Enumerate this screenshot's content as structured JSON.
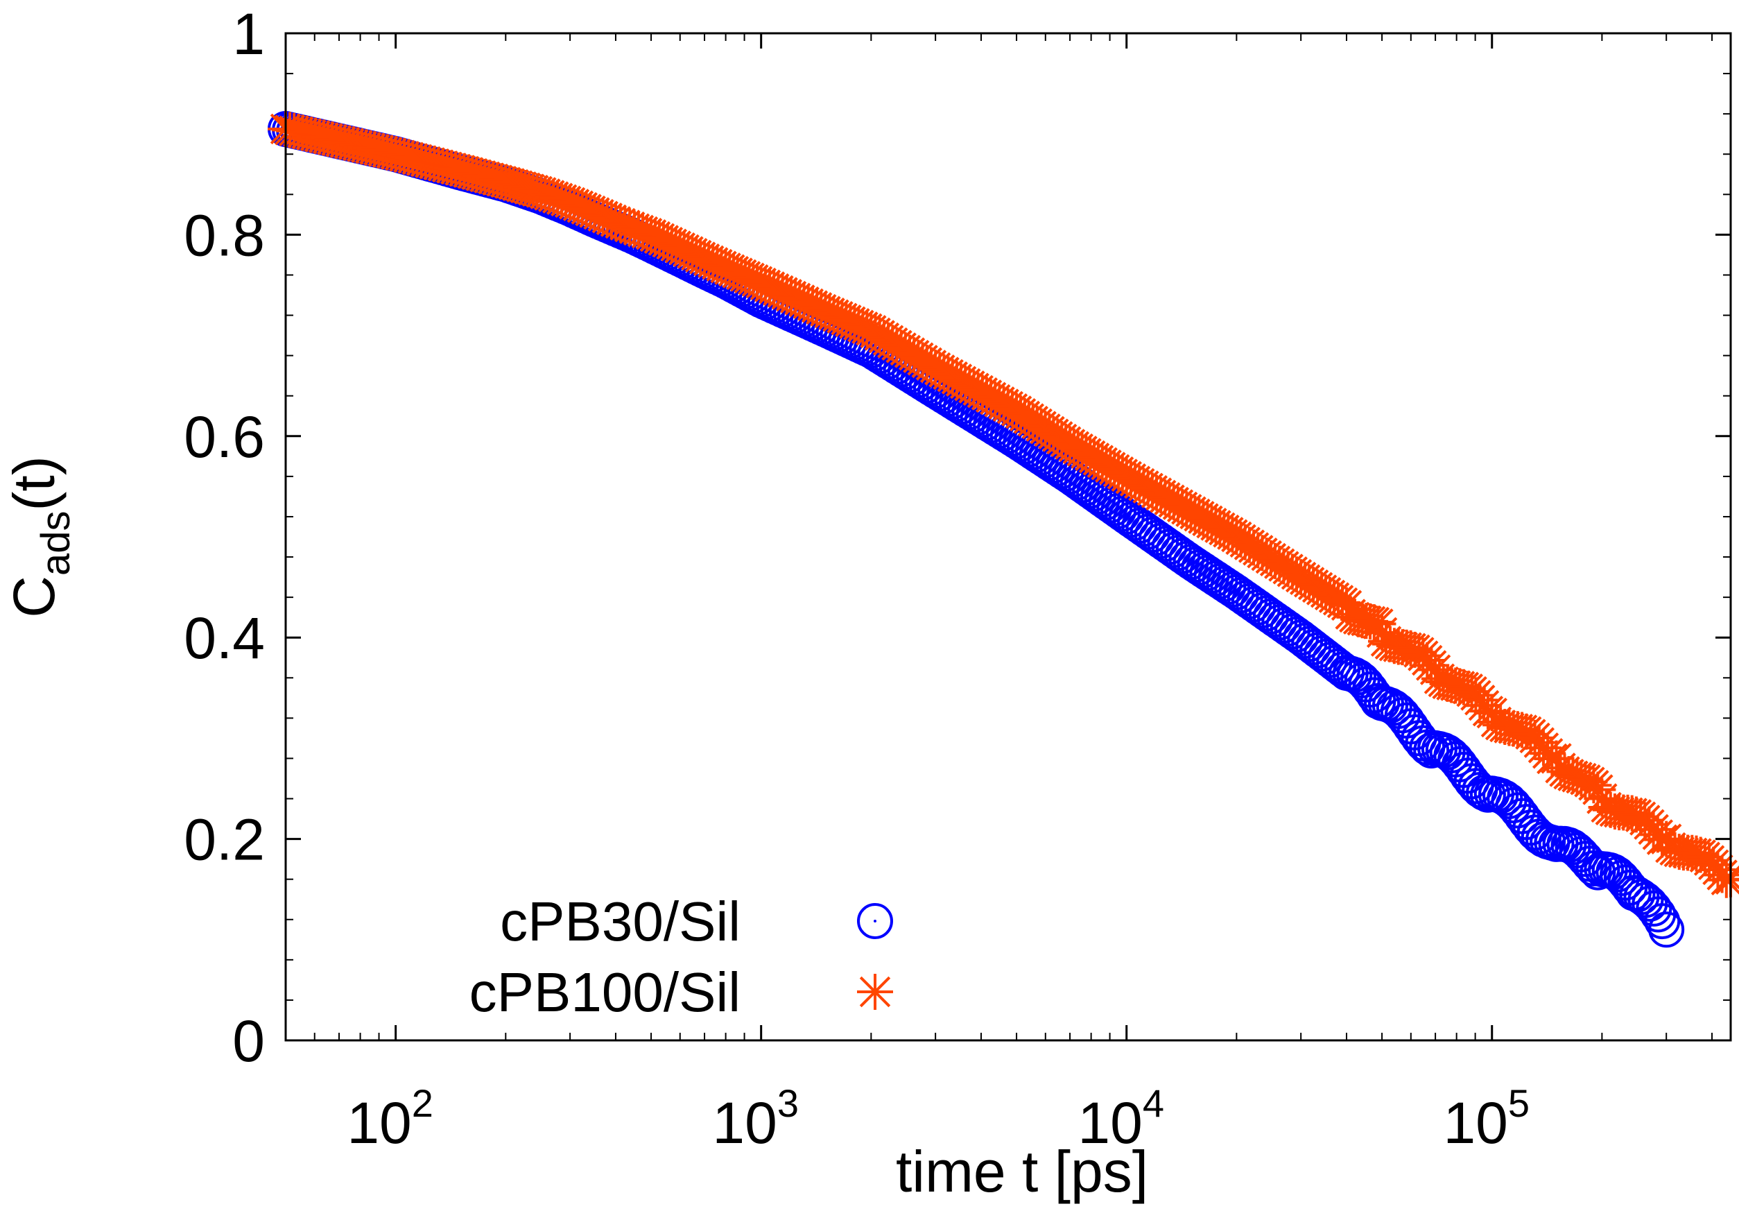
{
  "chart_data": {
    "type": "scatter",
    "title": "",
    "xlabel": "time t [ps]",
    "ylabel": {
      "main": "C",
      "sub": "ads",
      "suffix": "(t)"
    },
    "xscale": "log",
    "xlim": [
      50,
      450000
    ],
    "ylim": [
      0,
      1
    ],
    "x_ticks": [
      {
        "base": "10",
        "exp": "2",
        "value": 100
      },
      {
        "base": "10",
        "exp": "3",
        "value": 1000
      },
      {
        "base": "10",
        "exp": "4",
        "value": 10000
      },
      {
        "base": "10",
        "exp": "5",
        "value": 100000
      }
    ],
    "y_ticks": [
      "0",
      "0.2",
      "0.4",
      "0.6",
      "0.8",
      "1"
    ],
    "legend_position": "bottom-left",
    "grid": false,
    "series": [
      {
        "name": "cPB30/Sil",
        "marker": "circle",
        "color": "#0000ff",
        "x": [
          50,
          100,
          150,
          200,
          250,
          300,
          350,
          400,
          450,
          500,
          600,
          700,
          800,
          1000,
          1500,
          2000,
          3000,
          5000,
          7000,
          10000,
          15000,
          20000,
          30000,
          40000,
          50000,
          70000,
          100000,
          150000,
          200000,
          250000,
          300000
        ],
        "y": [
          0.905,
          0.88,
          0.862,
          0.85,
          0.838,
          0.826,
          0.815,
          0.806,
          0.798,
          0.79,
          0.776,
          0.764,
          0.754,
          0.735,
          0.706,
          0.685,
          0.645,
          0.595,
          0.56,
          0.52,
          0.475,
          0.445,
          0.4,
          0.365,
          0.335,
          0.29,
          0.245,
          0.195,
          0.17,
          0.145,
          0.11
        ]
      },
      {
        "name": "cPB100/Sil",
        "marker": "asterisk",
        "color": "#ff4500",
        "x": [
          50,
          100,
          150,
          200,
          250,
          300,
          350,
          400,
          450,
          500,
          600,
          700,
          800,
          1000,
          1500,
          2000,
          3000,
          5000,
          7000,
          10000,
          15000,
          20000,
          30000,
          40000,
          50000,
          70000,
          100000,
          150000,
          200000,
          300000,
          450000
        ],
        "y": [
          0.905,
          0.88,
          0.864,
          0.852,
          0.842,
          0.832,
          0.822,
          0.813,
          0.806,
          0.8,
          0.787,
          0.776,
          0.767,
          0.752,
          0.724,
          0.705,
          0.668,
          0.625,
          0.592,
          0.56,
          0.525,
          0.5,
          0.46,
          0.432,
          0.405,
          0.368,
          0.325,
          0.28,
          0.24,
          0.2,
          0.16
        ]
      }
    ]
  }
}
